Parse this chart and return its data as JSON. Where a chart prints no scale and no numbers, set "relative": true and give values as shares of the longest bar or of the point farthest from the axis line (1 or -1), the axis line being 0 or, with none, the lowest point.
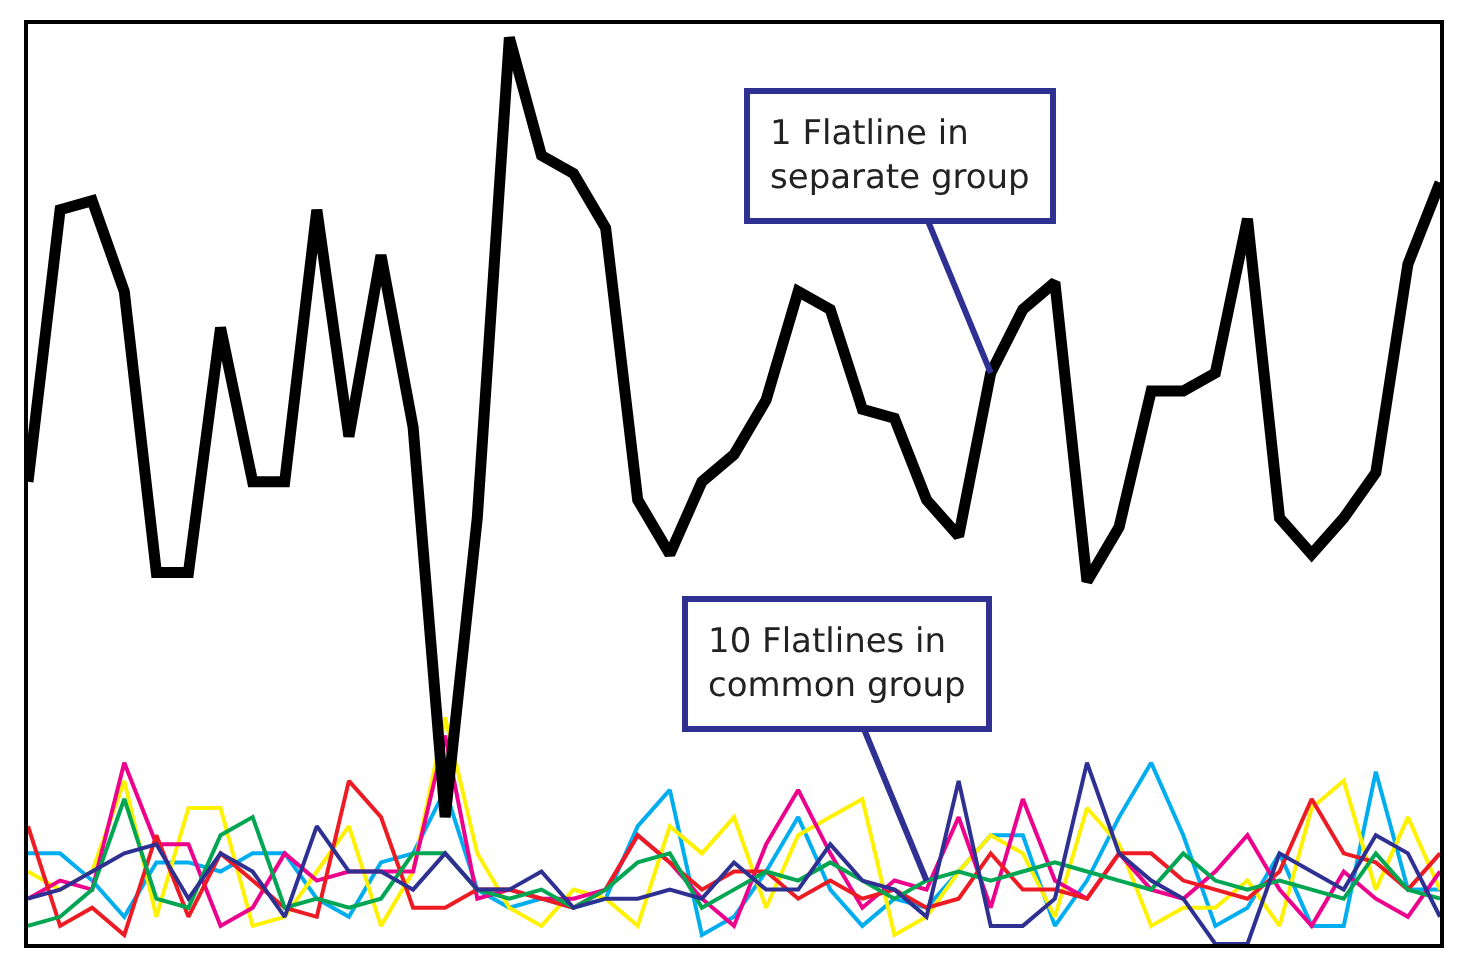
{
  "chart_data": {
    "type": "line",
    "relative": true,
    "categories": [
      null,
      null,
      null,
      null,
      null,
      null,
      null,
      null,
      null,
      null,
      null,
      null,
      null,
      null,
      null,
      null,
      null,
      null,
      null,
      null,
      null,
      null,
      null,
      null,
      null,
      null,
      null,
      null,
      null,
      null,
      null,
      null,
      null,
      null,
      null,
      null,
      null,
      null,
      null,
      null,
      null,
      null,
      null,
      null,
      null
    ],
    "annotations": [
      "1 Flatline in separate group",
      "10 Flatlines in common group"
    ],
    "series": [
      {
        "color": "#00aeef",
        "values": [
          0.1,
          0.1,
          0.07,
          0.03,
          0.09,
          0.09,
          0.08,
          0.1,
          0.1,
          0.05,
          0.03,
          0.09,
          0.1,
          0.17,
          0.06,
          0.04,
          0.05,
          0.04,
          0.05,
          0.13,
          0.17,
          0.01,
          0.03,
          0.08,
          0.14,
          0.06,
          0.02,
          0.05,
          0.04,
          0.08,
          0.12,
          0.12,
          0.02,
          0.07,
          0.14,
          0.2,
          0.12,
          0.02,
          0.04,
          0.1,
          0.02,
          0.02,
          0.19,
          0.06,
          0.06
        ]
      },
      {
        "color": "#fff200",
        "values": [
          0.08,
          0.06,
          0.08,
          0.18,
          0.03,
          0.15,
          0.15,
          0.02,
          0.03,
          0.08,
          0.13,
          0.02,
          0.08,
          0.25,
          0.1,
          0.04,
          0.02,
          0.06,
          0.05,
          0.02,
          0.13,
          0.1,
          0.14,
          0.04,
          0.12,
          0.14,
          0.16,
          0.01,
          0.03,
          0.08,
          0.12,
          0.1,
          0.03,
          0.15,
          0.11,
          0.02,
          0.04,
          0.04,
          0.07,
          0.02,
          0.15,
          0.18,
          0.06,
          0.14,
          0.06
        ]
      },
      {
        "color": "#ec008c",
        "values": [
          0.05,
          0.07,
          0.06,
          0.2,
          0.11,
          0.11,
          0.02,
          0.04,
          0.1,
          0.07,
          0.08,
          0.08,
          0.08,
          0.23,
          0.05,
          0.06,
          0.05,
          0.05,
          0.06,
          0.12,
          0.09,
          0.05,
          0.02,
          0.11,
          0.17,
          0.1,
          0.04,
          0.07,
          0.06,
          0.14,
          0.04,
          0.16,
          0.07,
          0.05,
          0.1,
          0.06,
          0.05,
          0.08,
          0.12,
          0.06,
          0.02,
          0.08,
          0.05,
          0.03,
          0.08
        ]
      },
      {
        "color": "#ed1c24",
        "values": [
          0.13,
          0.02,
          0.04,
          0.01,
          0.12,
          0.03,
          0.1,
          0.07,
          0.04,
          0.03,
          0.18,
          0.14,
          0.04,
          0.04,
          0.06,
          0.06,
          0.05,
          0.04,
          0.06,
          0.12,
          0.09,
          0.06,
          0.08,
          0.08,
          0.05,
          0.07,
          0.05,
          0.06,
          0.04,
          0.05,
          0.1,
          0.06,
          0.06,
          0.05,
          0.1,
          0.1,
          0.07,
          0.06,
          0.05,
          0.08,
          0.16,
          0.1,
          0.09,
          0.06,
          0.1
        ]
      },
      {
        "color": "#00a651",
        "values": [
          0.02,
          0.03,
          0.06,
          0.16,
          0.05,
          0.04,
          0.12,
          0.14,
          0.04,
          0.05,
          0.04,
          0.05,
          0.1,
          0.1,
          0.06,
          0.05,
          0.06,
          0.04,
          0.06,
          0.09,
          0.1,
          0.04,
          0.06,
          0.08,
          0.07,
          0.09,
          0.07,
          0.05,
          0.07,
          0.08,
          0.07,
          0.08,
          0.09,
          0.08,
          0.07,
          0.06,
          0.1,
          0.07,
          0.06,
          0.07,
          0.06,
          0.05,
          0.1,
          0.06,
          0.05
        ]
      },
      {
        "color": "#2e3192",
        "values": [
          0.05,
          0.06,
          0.08,
          0.1,
          0.11,
          0.05,
          0.1,
          0.08,
          0.03,
          0.13,
          0.08,
          0.08,
          0.06,
          0.1,
          0.06,
          0.06,
          0.08,
          0.04,
          0.05,
          0.05,
          0.06,
          0.05,
          0.09,
          0.06,
          0.06,
          0.11,
          0.07,
          0.06,
          0.03,
          0.18,
          0.02,
          0.02,
          0.05,
          0.2,
          0.1,
          0.07,
          0.05,
          0.0,
          0.0,
          0.1,
          0.08,
          0.06,
          0.12,
          0.1,
          0.03
        ]
      },
      {
        "color": "#000000",
        "values": [
          0.51,
          0.81,
          0.82,
          0.72,
          0.41,
          0.41,
          0.68,
          0.51,
          0.51,
          0.81,
          0.56,
          0.76,
          0.57,
          0.14,
          0.47,
          1.0,
          0.87,
          0.85,
          0.79,
          0.49,
          0.43,
          0.51,
          0.54,
          0.6,
          0.72,
          0.7,
          0.59,
          0.58,
          0.49,
          0.45,
          0.63,
          0.7,
          0.73,
          0.4,
          0.46,
          0.61,
          0.61,
          0.63,
          0.8,
          0.47,
          0.43,
          0.47,
          0.52,
          0.75,
          0.84
        ]
      }
    ]
  }
}
